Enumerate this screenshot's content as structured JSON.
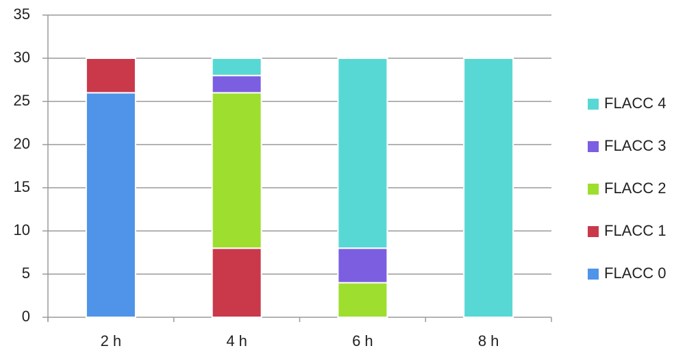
{
  "chart_data": {
    "type": "stacked_bar",
    "categories": [
      "2 h",
      "4 h",
      "6 h",
      "8 h"
    ],
    "series": [
      {
        "name": "FLACC 0",
        "color": "#4f94e8",
        "values": [
          26,
          0,
          0,
          0
        ]
      },
      {
        "name": "FLACC 1",
        "color": "#c9394a",
        "values": [
          4,
          8,
          0,
          0
        ]
      },
      {
        "name": "FLACC 2",
        "color": "#9ede2e",
        "values": [
          0,
          18,
          4,
          0
        ]
      },
      {
        "name": "FLACC 3",
        "color": "#7b5fe0",
        "values": [
          0,
          2,
          4,
          0
        ]
      },
      {
        "name": "FLACC 4",
        "color": "#58d8d4",
        "values": [
          0,
          2,
          22,
          30
        ]
      }
    ],
    "ylim": [
      0,
      35
    ],
    "yticks": [
      0,
      5,
      10,
      15,
      20,
      25,
      30,
      35
    ],
    "grid": true,
    "legend": "right"
  }
}
